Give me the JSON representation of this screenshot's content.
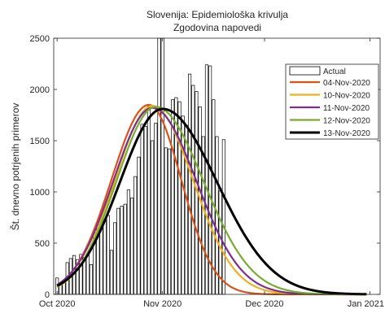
{
  "chart_data": {
    "type": "bar",
    "title": "Slovenija: Epidemiološka krivulja",
    "subtitle": "Zgodovina napovedi",
    "xlabel": "",
    "ylabel": "Št. dnevno potrjenih primerov",
    "x_range": [
      "2020-09-30",
      "2021-01-04"
    ],
    "ylim": [
      0,
      2500
    ],
    "x_ticks": [
      {
        "date": "2020-10-01",
        "label": "Oct 2020"
      },
      {
        "date": "2020-11-01",
        "label": "Nov 2020"
      },
      {
        "date": "2020-12-01",
        "label": "Dec 2020"
      },
      {
        "date": "2021-01-01",
        "label": "Jan 2021"
      }
    ],
    "y_ticks": [
      0,
      500,
      1000,
      1500,
      2000,
      2500
    ],
    "legend_position": "top-right",
    "grid": false,
    "actual": {
      "name": "Actual",
      "start_date": "2020-10-01",
      "values": [
        160,
        90,
        130,
        310,
        350,
        380,
        340,
        390,
        360,
        390,
        290,
        600,
        640,
        700,
        730,
        770,
        430,
        700,
        840,
        860,
        880,
        1020,
        940,
        1150,
        1340,
        1660,
        1640,
        1840,
        1500,
        1670,
        2500,
        2500,
        1430,
        1420,
        1900,
        1920,
        1880,
        1740,
        1650,
        2150,
        2040,
        1980,
        1830,
        1540,
        2240,
        2230,
        1900,
        1540,
        1010,
        1510
      ]
    },
    "series": [
      {
        "name": "04-Nov-2020",
        "color": "#D95319",
        "peak_date": "2020-10-28",
        "peak": 1850,
        "rise_sigma": 11,
        "fall_sigma": 9.5,
        "start_date": "2020-10-01",
        "end_date": "2020-12-31"
      },
      {
        "name": "10-Nov-2020",
        "color": "#EDB120",
        "peak_date": "2020-10-29",
        "peak": 1840,
        "rise_sigma": 11,
        "fall_sigma": 12,
        "start_date": "2020-10-01",
        "end_date": "2020-12-31"
      },
      {
        "name": "11-Nov-2020",
        "color": "#7E2F8E",
        "peak_date": "2020-10-29",
        "peak": 1820,
        "rise_sigma": 11.5,
        "fall_sigma": 13,
        "start_date": "2020-10-01",
        "end_date": "2020-12-31"
      },
      {
        "name": "12-Nov-2020",
        "color": "#77AC30",
        "peak_date": "2020-10-30",
        "peak": 1830,
        "rise_sigma": 11.5,
        "fall_sigma": 14,
        "start_date": "2020-10-01",
        "end_date": "2020-12-31"
      },
      {
        "name": "13-Nov-2020",
        "color": "#000000",
        "peak_date": "2020-11-01",
        "peak": 1810,
        "rise_sigma": 12.5,
        "fall_sigma": 16,
        "start_date": "2020-10-01",
        "end_date": "2020-12-31"
      }
    ]
  }
}
